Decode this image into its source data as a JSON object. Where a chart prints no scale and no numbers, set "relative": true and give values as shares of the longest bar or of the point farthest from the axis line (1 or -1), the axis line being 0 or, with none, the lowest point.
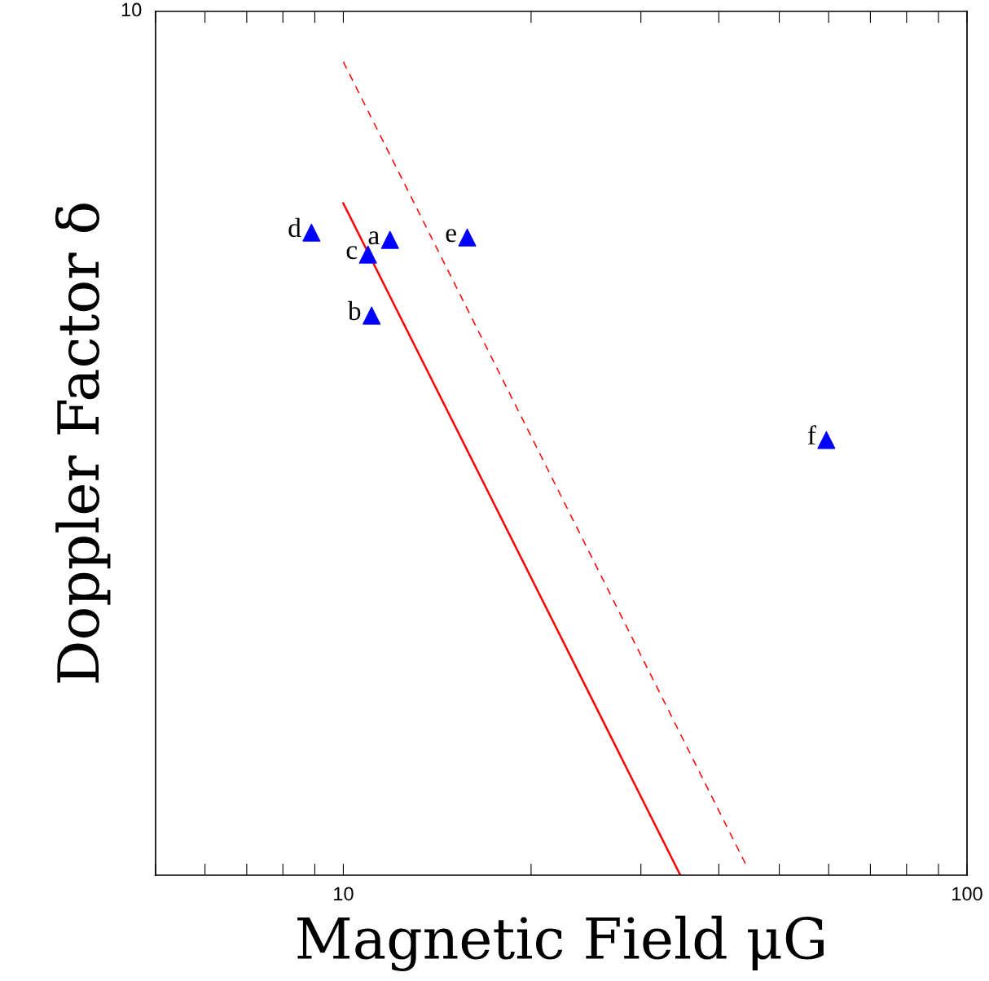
{
  "chart_data": {
    "type": "scatter",
    "xlabel": "Magnetic Field μG",
    "ylabel": "Doppler Factor δ",
    "log": "x",
    "relative": true,
    "xlim": [
      5,
      100
    ],
    "xticks": [
      {
        "value": 5,
        "label": null
      },
      {
        "value": 6,
        "label": null
      },
      {
        "value": 7,
        "label": null
      },
      {
        "value": 8,
        "label": null
      },
      {
        "value": 9,
        "label": null
      },
      10,
      {
        "value": 20,
        "label": null
      },
      {
        "value": 30,
        "label": null
      },
      {
        "value": 40,
        "label": null
      },
      {
        "value": 50,
        "label": null
      },
      {
        "value": 60,
        "label": null
      },
      {
        "value": 70,
        "label": null
      },
      {
        "value": 80,
        "label": null
      },
      {
        "value": 90,
        "label": null
      },
      100
    ],
    "grid": false,
    "legend": false,
    "series": [
      {
        "color": "#0000ff",
        "marker": "triangle",
        "x": [
          11.88,
          11.1,
          10.95,
          8.89,
          15.8,
          59.5
        ],
        "values": [
          0.781,
          0.688,
          0.763,
          0.79,
          0.784,
          0.535
        ]
      },
      {
        "type": "line",
        "color": "#ff0000",
        "line_style": "solid",
        "marker": "none",
        "x": [
          10,
          34.7
        ],
        "values": [
          0.826,
          0
        ]
      },
      {
        "type": "line",
        "color": "#ff0000",
        "line_style": "dashed",
        "marker": "none",
        "x": [
          10,
          44.4
        ],
        "values": [
          1,
          0.01
        ]
      }
    ],
    "annotations": [
      "10",
      {
        "text": "a",
        "x": 11.88,
        "y": 0.781
      },
      {
        "text": "b",
        "x": 11.1,
        "y": 0.688
      },
      {
        "text": "c",
        "x": 10.95,
        "y": 0.763
      },
      {
        "text": "d",
        "x": 8.89,
        "y": 0.79
      },
      {
        "text": "e",
        "x": 15.8,
        "y": 0.784
      },
      {
        "text": "f",
        "x": 59.5,
        "y": 0.535
      }
    ]
  }
}
